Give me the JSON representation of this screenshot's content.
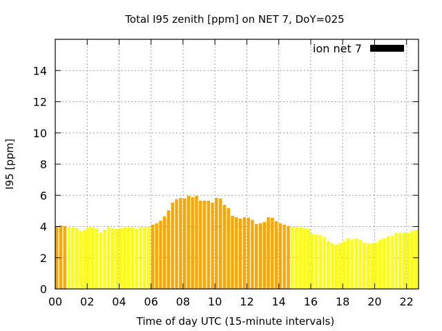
{
  "chart_data": {
    "type": "bar",
    "title": "Total I95 zenith [ppm] on NET 7, DoY=025",
    "xlabel": "Time of day UTC (15-minute intervals)",
    "ylabel": "I95 [ppm]",
    "xlim": [
      0,
      22.75
    ],
    "ylim": [
      0,
      16
    ],
    "grid": true,
    "legend": {
      "label": "ion net 7",
      "placement": "top-right",
      "swatch_color": "#000000"
    },
    "xticks": [
      0,
      2,
      4,
      6,
      8,
      10,
      12,
      14,
      16,
      18,
      20,
      22
    ],
    "xtick_labels": [
      "00",
      "02",
      "04",
      "06",
      "08",
      "10",
      "12",
      "14",
      "16",
      "18",
      "20",
      "22"
    ],
    "yticks": [
      0,
      2,
      4,
      6,
      8,
      10,
      12,
      14
    ],
    "ytick_labels": [
      "0",
      "2",
      "4",
      "6",
      "8",
      "10",
      "12",
      "14"
    ],
    "interval_hours": 0.25,
    "colors": {
      "orange": "#ffa500",
      "yellow": "#ffff00"
    },
    "values": [
      4.0,
      4.07,
      4.03,
      3.94,
      3.94,
      3.9,
      3.72,
      3.8,
      3.94,
      3.94,
      3.85,
      3.63,
      3.8,
      3.98,
      3.9,
      3.85,
      3.9,
      3.94,
      3.94,
      3.94,
      3.85,
      3.94,
      3.98,
      3.98,
      4.12,
      4.2,
      4.38,
      4.65,
      5.04,
      5.53,
      5.75,
      5.84,
      5.79,
      5.97,
      5.88,
      5.97,
      5.66,
      5.66,
      5.66,
      5.53,
      5.84,
      5.79,
      5.4,
      5.18,
      4.69,
      4.6,
      4.51,
      4.6,
      4.56,
      4.43,
      4.16,
      4.21,
      4.29,
      4.6,
      4.56,
      4.34,
      4.21,
      4.12,
      4.03,
      3.98,
      3.98,
      3.94,
      3.9,
      3.85,
      3.5,
      3.5,
      3.46,
      3.32,
      3.06,
      2.93,
      2.84,
      2.93,
      3.06,
      3.24,
      3.19,
      3.24,
      3.15,
      2.97,
      2.93,
      2.93,
      2.97,
      3.15,
      3.24,
      3.37,
      3.41,
      3.59,
      3.59,
      3.63,
      3.59,
      3.72,
      3.8,
      3.8
    ],
    "bar_color": [
      "orange",
      "orange",
      "orange",
      "yellow",
      "yellow",
      "yellow",
      "yellow",
      "yellow",
      "yellow",
      "yellow",
      "yellow",
      "yellow",
      "yellow",
      "yellow",
      "yellow",
      "yellow",
      "yellow",
      "yellow",
      "yellow",
      "yellow",
      "yellow",
      "yellow",
      "yellow",
      "yellow",
      "orange",
      "orange",
      "orange",
      "orange",
      "orange",
      "orange",
      "orange",
      "orange",
      "orange",
      "orange",
      "orange",
      "orange",
      "orange",
      "orange",
      "orange",
      "orange",
      "orange",
      "orange",
      "orange",
      "orange",
      "orange",
      "orange",
      "orange",
      "orange",
      "orange",
      "orange",
      "orange",
      "orange",
      "orange",
      "orange",
      "orange",
      "orange",
      "orange",
      "orange",
      "orange",
      "yellow",
      "yellow",
      "yellow",
      "yellow",
      "yellow",
      "yellow",
      "yellow",
      "yellow",
      "yellow",
      "yellow",
      "yellow",
      "yellow",
      "yellow",
      "yellow",
      "yellow",
      "yellow",
      "yellow",
      "yellow",
      "yellow",
      "yellow",
      "yellow",
      "yellow",
      "yellow",
      "yellow",
      "yellow",
      "yellow",
      "yellow",
      "yellow",
      "yellow",
      "yellow",
      "yellow",
      "yellow",
      "yellow"
    ]
  }
}
